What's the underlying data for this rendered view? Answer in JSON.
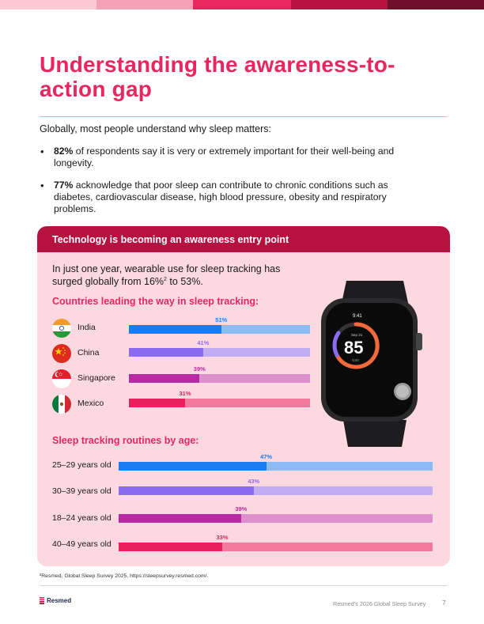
{
  "top_bar_colors": [
    "#fcc9d4",
    "#f4a0b6",
    "#e8275f",
    "#b5123f",
    "#6e0f2c"
  ],
  "title": "Understanding the awareness-to-action gap",
  "intro": "Globally, most people understand why sleep matters:",
  "bullets": [
    {
      "stat": "82%",
      "text": " of respondents say it is very or extremely important for their well-being and longevity."
    },
    {
      "stat": "77%",
      "text": " acknowledge that poor sleep can contribute to chronic conditions such as diabetes, cardiovascular disease, high blood pressure, obesity and respiratory problems."
    }
  ],
  "panel": {
    "header": "Technology is becoming an awareness entry point",
    "lead_part1": "In just one year, wearable use for sleep tracking has surged globally from 16%",
    "lead_sup": "2",
    "lead_part2": " to 53%.",
    "countries_title": "Countries leading the way in sleep tracking:",
    "age_title": "Sleep tracking routines by age:"
  },
  "watch": {
    "time": "9:41",
    "date": "Sep 21",
    "score": "85",
    "score_max": "/100"
  },
  "chart_data": [
    {
      "type": "bar",
      "title": "Countries leading the way in sleep tracking:",
      "categories": [
        "India",
        "China",
        "Singapore",
        "Mexico"
      ],
      "values": [
        51,
        41,
        39,
        31
      ],
      "labels": [
        "51%",
        "41%",
        "39%",
        "31%"
      ],
      "icons": [
        "india-flag-icon",
        "china-flag-icon",
        "singapore-flag-icon",
        "mexico-flag-icon"
      ],
      "colors": [
        {
          "fill": "#1b7cf2",
          "track": "#8dbcf5",
          "text": "#1b7cf2"
        },
        {
          "fill": "#8b6cf0",
          "track": "#c1adf2",
          "text": "#8b6cf0"
        },
        {
          "fill": "#b82aa3",
          "track": "#de8fce",
          "text": "#b82aa3"
        },
        {
          "fill": "#e8205d",
          "track": "#f27a9c",
          "text": "#e8205d"
        }
      ],
      "ylim": [
        0,
        100
      ]
    },
    {
      "type": "bar",
      "title": "Sleep tracking routines by age:",
      "categories": [
        "25–29 years old",
        "30–39 years old",
        "18–24 years old",
        "40–49 years old"
      ],
      "values": [
        47,
        43,
        39,
        33
      ],
      "labels": [
        "47%",
        "43%",
        "39%",
        "33%"
      ],
      "colors": [
        {
          "fill": "#1b7cf2",
          "track": "#8dbcf5",
          "text": "#1b7cf2"
        },
        {
          "fill": "#8b6cf0",
          "track": "#c1adf2",
          "text": "#8b6cf0"
        },
        {
          "fill": "#b82aa3",
          "track": "#de8fce",
          "text": "#b82aa3"
        },
        {
          "fill": "#e8205d",
          "track": "#f27a9c",
          "text": "#e8205d"
        }
      ],
      "ylim": [
        0,
        100
      ]
    }
  ],
  "footnote": "²Resmed, Global Sleep Survey 2025, https://sleepsurvey.resmed.com/.",
  "footer": {
    "brand": "Resmed",
    "report": "Resmed’s 2026 Global Sleep Survey",
    "page": "7"
  }
}
